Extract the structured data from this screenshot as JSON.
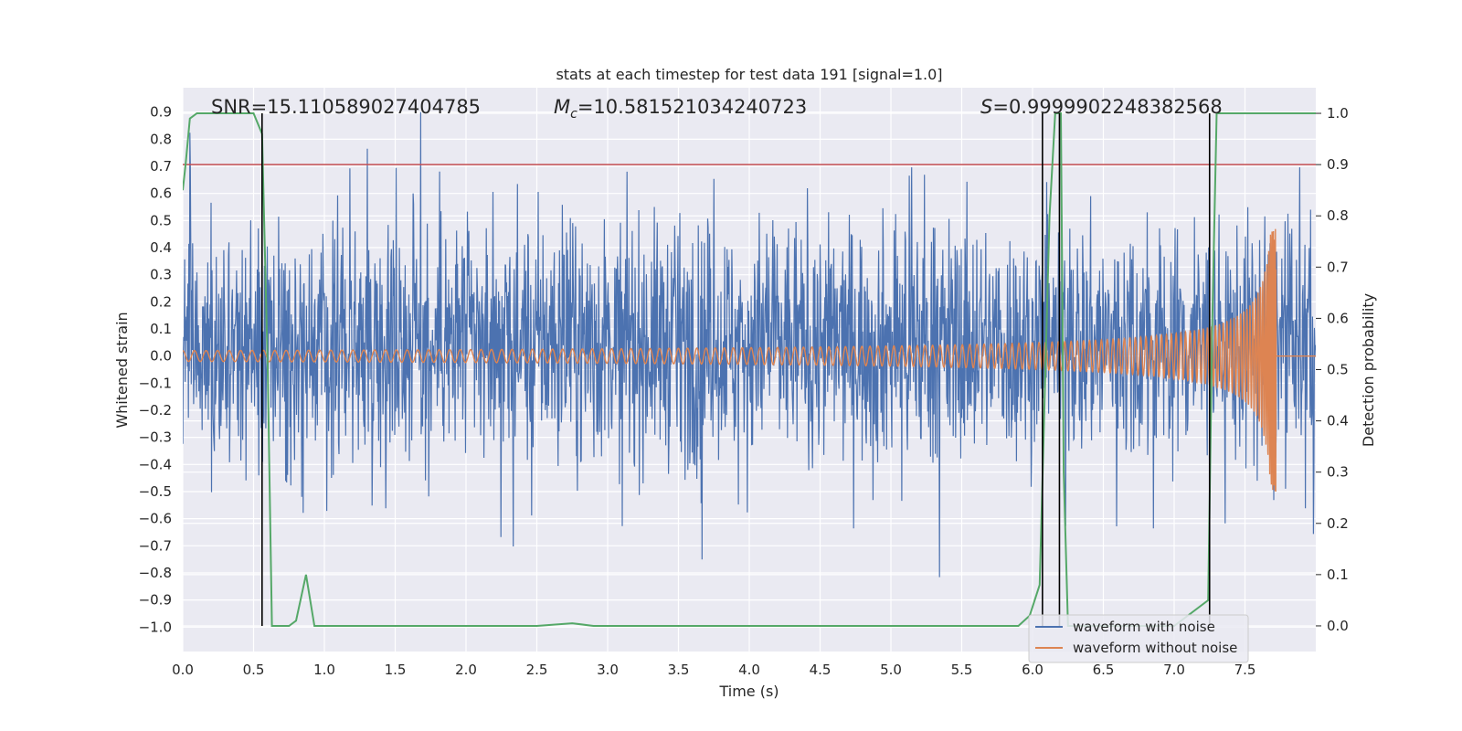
{
  "chart_data": {
    "type": "line",
    "title": "stats at each timestep for test data 191 [signal=1.0]",
    "xlabel": "Time (s)",
    "ylabel": "Whitened strain",
    "ylabel_right": "Detection probability",
    "xlim": [
      0.0,
      8.0
    ],
    "ylim": [
      -1.09,
      0.99
    ],
    "ylim_right": [
      -0.05,
      1.05
    ],
    "x_ticks": [
      0.0,
      0.5,
      1.0,
      1.5,
      2.0,
      2.5,
      3.0,
      3.5,
      4.0,
      4.5,
      5.0,
      5.5,
      6.0,
      6.5,
      7.0,
      7.5
    ],
    "x_tick_labels": [
      "0.0",
      "0.5",
      "1.0",
      "1.5",
      "2.0",
      "2.5",
      "3.0",
      "3.5",
      "4.0",
      "4.5",
      "5.0",
      "5.5",
      "6.0",
      "6.5",
      "7.0",
      "7.5"
    ],
    "y_ticks": [
      0.9,
      0.8,
      0.7,
      0.6,
      0.5,
      0.4,
      0.3,
      0.2,
      0.1,
      0.0,
      -0.1,
      -0.2,
      -0.3,
      -0.4,
      -0.5,
      -0.6,
      -0.7,
      -0.8,
      -0.9,
      -1.0
    ],
    "y_tick_labels": [
      "0.9",
      "0.8",
      "0.7",
      "0.6",
      "0.5",
      "0.4",
      "0.3",
      "0.2",
      "0.1",
      "0.0",
      "−0.1",
      "−0.2",
      "−0.3",
      "−0.4",
      "−0.5",
      "−0.6",
      "−0.7",
      "−0.8",
      "−0.9",
      "−1.0"
    ],
    "y2_ticks": [
      1.0,
      0.9,
      0.8,
      0.7,
      0.6,
      0.5,
      0.4,
      0.3,
      0.2,
      0.1,
      0.0
    ],
    "y2_tick_labels": [
      "1.0",
      "0.9",
      "0.8",
      "0.7",
      "0.6",
      "0.5",
      "0.4",
      "0.3",
      "0.2",
      "0.1",
      "0.0"
    ],
    "annotations": {
      "snr": "SNR=15.110589027404785",
      "mc_symbol": "M",
      "mc_sub": "c",
      "mc_value": "=10.581521034240723",
      "s_symbol": "S",
      "s_value": "=0.9999902248382568"
    },
    "threshold": {
      "value": 0.9,
      "axis": "right",
      "color": "#c44e52"
    },
    "vertical_lines": [
      0.56,
      6.07,
      6.19,
      7.25
    ],
    "noise_series": {
      "name": "waveform with noise",
      "color": "#4c72b0",
      "envelope_note": "dense noisy strain spanning roughly -0.7 to 0.9"
    },
    "clean_series": {
      "name": "waveform without noise",
      "color": "#dd8452",
      "t_merger": 7.72,
      "amp_start": 0.02,
      "amp_peak": 0.5
    },
    "probability_series": {
      "name": "detection probability",
      "color": "#55a868",
      "x": [
        0.0,
        0.02,
        0.05,
        0.1,
        0.2,
        0.3,
        0.4,
        0.5,
        0.56,
        0.6,
        0.63,
        0.7,
        0.75,
        0.8,
        0.87,
        0.93,
        1.0,
        2.5,
        2.75,
        2.9,
        5.9,
        5.98,
        6.05,
        6.12,
        6.16,
        6.2,
        6.22,
        6.25,
        6.4,
        7.0,
        7.24,
        7.27,
        7.3,
        7.35,
        8.0
      ],
      "y": [
        0.85,
        0.9,
        0.99,
        1.0,
        1.0,
        1.0,
        1.0,
        1.0,
        0.96,
        0.5,
        0.0,
        0.0,
        0.0,
        0.01,
        0.1,
        0.0,
        0.0,
        0.0,
        0.005,
        0.0,
        0.0,
        0.02,
        0.08,
        0.8,
        1.0,
        1.0,
        0.3,
        0.0,
        0.0,
        0.0,
        0.05,
        0.6,
        1.0,
        1.0,
        1.0
      ]
    },
    "legend": {
      "placement": "lower-right",
      "entries": [
        "waveform with noise",
        "waveform without noise"
      ]
    },
    "grid": true
  }
}
